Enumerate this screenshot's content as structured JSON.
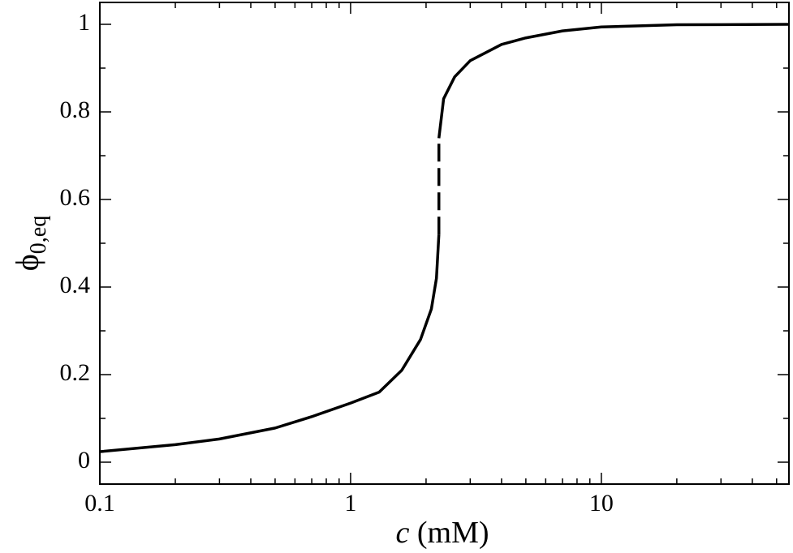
{
  "chart_data": {
    "type": "line",
    "x_label_var": "c",
    "x_label_unit": "(mM)",
    "y_label": "ϕ",
    "y_label_subscript": "0,eq",
    "xscale": "log",
    "xlim": [
      0.1,
      56
    ],
    "ylim": [
      -0.05,
      1.05
    ],
    "xticks": [
      0.1,
      1,
      10
    ],
    "xminorticks": [
      0.2,
      0.3,
      0.4,
      0.5,
      0.6,
      0.7,
      0.8,
      0.9,
      2,
      3,
      4,
      5,
      6,
      7,
      8,
      9,
      20,
      30,
      40,
      50
    ],
    "yticks": [
      0,
      0.2,
      0.4,
      0.6,
      0.8,
      1
    ],
    "yminorticks": [
      0.1,
      0.3,
      0.5,
      0.7,
      0.9
    ],
    "series": [
      {
        "color": "#000000",
        "dash": false,
        "x": [
          0.1,
          0.2,
          0.3,
          0.5,
          0.7,
          1,
          1.3,
          1.6,
          1.9,
          2.1,
          2.2,
          2.25
        ],
        "values": [
          0.024,
          0.04,
          0.053,
          0.078,
          0.104,
          0.135,
          0.16,
          0.21,
          0.28,
          0.35,
          0.42,
          0.52
        ]
      },
      {
        "color": "#000000",
        "dash": true,
        "x": [
          2.25,
          2.25
        ],
        "values": [
          0.52,
          0.74
        ]
      },
      {
        "color": "#000000",
        "dash": false,
        "x": [
          2.25,
          2.35,
          2.6,
          3,
          4,
          5,
          7,
          10,
          20,
          56
        ],
        "values": [
          0.74,
          0.83,
          0.88,
          0.917,
          0.954,
          0.969,
          0.985,
          0.994,
          0.999,
          1.0
        ]
      }
    ]
  }
}
